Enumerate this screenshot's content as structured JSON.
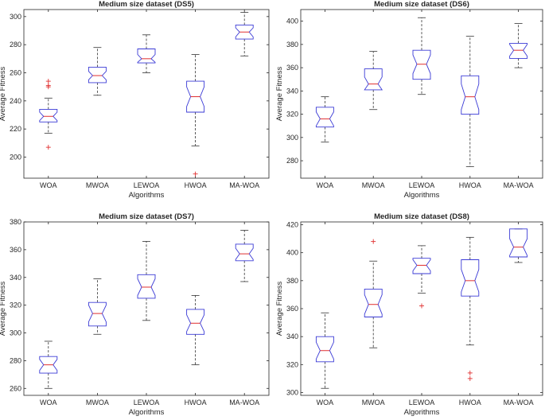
{
  "chart_data": [
    {
      "type": "boxplot",
      "title": "Medium size dataset (DS5)",
      "xlabel": "Algorithms",
      "ylabel": "Average Fitness",
      "ylim": [
        185,
        305
      ],
      "yticks": [
        200,
        220,
        240,
        260,
        280,
        300
      ],
      "categories": [
        "WOA",
        "MWOA",
        "LEWOA",
        "HWOA",
        "MA-WOA"
      ],
      "boxes": [
        {
          "min": 217,
          "q1": 225,
          "median": 229,
          "q3": 234,
          "max": 242,
          "notch_lo": 226,
          "notch_hi": 232,
          "outliers": [
            207,
            250,
            251,
            254
          ]
        },
        {
          "min": 244,
          "q1": 253,
          "median": 258,
          "q3": 264,
          "max": 278,
          "notch_lo": 255,
          "notch_hi": 261,
          "outliers": []
        },
        {
          "min": 260,
          "q1": 267,
          "median": 270,
          "q3": 277,
          "max": 287,
          "notch_lo": 267.5,
          "notch_hi": 273,
          "outliers": []
        },
        {
          "min": 208,
          "q1": 232,
          "median": 243,
          "q3": 254,
          "max": 273,
          "notch_lo": 236,
          "notch_hi": 250,
          "outliers": [
            188
          ]
        },
        {
          "min": 272,
          "q1": 284,
          "median": 289,
          "q3": 294,
          "max": 303,
          "notch_lo": 285.5,
          "notch_hi": 292,
          "outliers": []
        }
      ]
    },
    {
      "type": "boxplot",
      "title": "Medium size dataset (DS6)",
      "xlabel": "Algorithms",
      "ylabel": "Average Fitness",
      "ylim": [
        265,
        410
      ],
      "yticks": [
        280,
        300,
        320,
        340,
        360,
        380,
        400
      ],
      "categories": [
        "WOA",
        "MWOA",
        "LEWOA",
        "HWOA",
        "MA-WOA"
      ],
      "boxes": [
        {
          "min": 296,
          "q1": 309,
          "median": 316,
          "q3": 326,
          "max": 335,
          "notch_lo": 310,
          "notch_hi": 322,
          "outliers": []
        },
        {
          "min": 324,
          "q1": 341,
          "median": 346,
          "q3": 359,
          "max": 374,
          "notch_lo": 341,
          "notch_hi": 352,
          "outliers": []
        },
        {
          "min": 337,
          "q1": 350,
          "median": 363,
          "q3": 375,
          "max": 403,
          "notch_lo": 355,
          "notch_hi": 371,
          "outliers": []
        },
        {
          "min": 275,
          "q1": 320,
          "median": 335,
          "q3": 353,
          "max": 387,
          "notch_lo": 324,
          "notch_hi": 346,
          "outliers": []
        },
        {
          "min": 360,
          "q1": 368,
          "median": 375,
          "q3": 381,
          "max": 398,
          "notch_lo": 370,
          "notch_hi": 380,
          "outliers": []
        }
      ]
    },
    {
      "type": "boxplot",
      "title": "Medium size dataset (DS7)",
      "xlabel": "Algorithms",
      "ylabel": "Average Fitness",
      "ylim": [
        255,
        380
      ],
      "yticks": [
        260,
        280,
        300,
        320,
        340,
        360,
        380
      ],
      "categories": [
        "WOA",
        "MWOA",
        "LEWOA",
        "HWOA",
        "MA-WOA"
      ],
      "boxes": [
        {
          "min": 260,
          "q1": 271,
          "median": 277,
          "q3": 283,
          "max": 294,
          "notch_lo": 273,
          "notch_hi": 281,
          "outliers": []
        },
        {
          "min": 299,
          "q1": 305,
          "median": 314,
          "q3": 322,
          "max": 339,
          "notch_lo": 308,
          "notch_hi": 320,
          "outliers": []
        },
        {
          "min": 309,
          "q1": 325,
          "median": 333,
          "q3": 342,
          "max": 366,
          "notch_lo": 327,
          "notch_hi": 339,
          "outliers": []
        },
        {
          "min": 277,
          "q1": 299,
          "median": 307,
          "q3": 317,
          "max": 327,
          "notch_lo": 301,
          "notch_hi": 313,
          "outliers": []
        },
        {
          "min": 337,
          "q1": 352,
          "median": 357,
          "q3": 364,
          "max": 374,
          "notch_lo": 353,
          "notch_hi": 361,
          "outliers": []
        }
      ]
    },
    {
      "type": "boxplot",
      "title": "Medium size dataset (DS8)",
      "xlabel": "Algorithms",
      "ylabel": "Average Fitness",
      "ylim": [
        298,
        422
      ],
      "yticks": [
        300,
        320,
        340,
        360,
        380,
        400,
        420
      ],
      "categories": [
        "WOA",
        "MWOA",
        "LEWOA",
        "HWOA",
        "MA-WOA"
      ],
      "boxes": [
        {
          "min": 303,
          "q1": 322,
          "median": 330,
          "q3": 340,
          "max": 357,
          "notch_lo": 324,
          "notch_hi": 336,
          "outliers": []
        },
        {
          "min": 332,
          "q1": 354,
          "median": 363,
          "q3": 374,
          "max": 394,
          "notch_lo": 356,
          "notch_hi": 370,
          "outliers": [
            408
          ]
        },
        {
          "min": 371,
          "q1": 385,
          "median": 391,
          "q3": 396,
          "max": 405,
          "notch_lo": 387,
          "notch_hi": 395,
          "outliers": [
            362
          ]
        },
        {
          "min": 334,
          "q1": 369,
          "median": 380,
          "q3": 395,
          "max": 411,
          "notch_lo": 372,
          "notch_hi": 388,
          "outliers": [
            310,
            314
          ]
        },
        {
          "min": 393,
          "q1": 397,
          "median": 404,
          "q3": 417,
          "max": 417,
          "notch_lo": 398,
          "notch_hi": 410,
          "outliers": []
        }
      ]
    }
  ],
  "colors": {
    "box": "#3a3ad6",
    "median": "#e03030",
    "whisker": "#333333",
    "outlier": "#e03030",
    "axis": "#262626",
    "background": "#ffffff"
  }
}
